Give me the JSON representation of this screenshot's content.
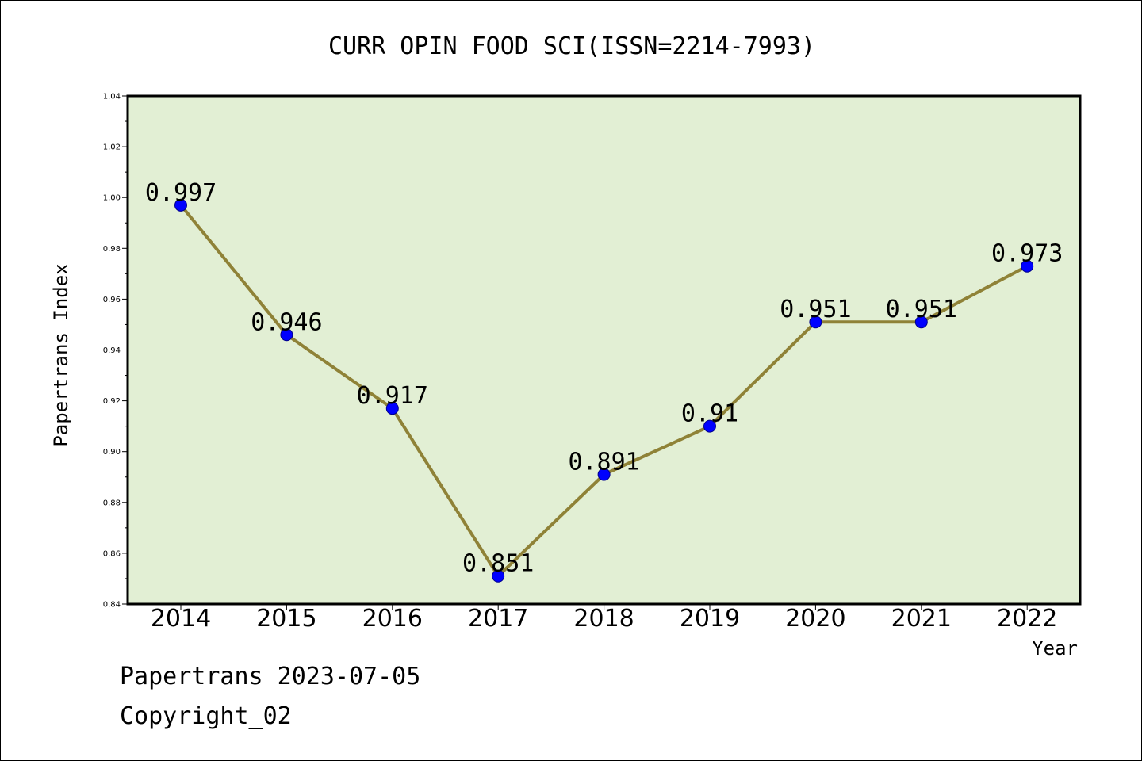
{
  "chart_data": {
    "type": "line",
    "title": "CURR OPIN FOOD SCI(ISSN=2214-7993)",
    "xlabel": "Year",
    "ylabel": "Papertrans Index",
    "categories": [
      "2014",
      "2015",
      "2016",
      "2017",
      "2018",
      "2019",
      "2020",
      "2021",
      "2022"
    ],
    "series": [
      {
        "values": [
          0.997,
          0.946,
          0.917,
          0.851,
          0.891,
          0.91,
          0.951,
          0.951,
          0.973
        ],
        "labels": [
          "0.997",
          "0.946",
          "0.917",
          "0.851",
          "0.891",
          "0.91",
          "0.951",
          "0.951",
          "0.973"
        ]
      }
    ],
    "ylim": [
      0.84,
      1.04
    ],
    "yticks": [
      "0.84",
      "0.86",
      "0.88",
      "0.90",
      "0.92",
      "0.94",
      "0.96",
      "0.98",
      "1.00",
      "1.02",
      "1.04"
    ],
    "grid": false,
    "colors": {
      "plot_background": "#e2efd4",
      "line": "#8f8237",
      "marker": "#0000ff",
      "marker_edge": "#00008b"
    }
  },
  "footer": {
    "line1": "Papertrans 2023-07-05",
    "line2": "Copyright_02"
  }
}
